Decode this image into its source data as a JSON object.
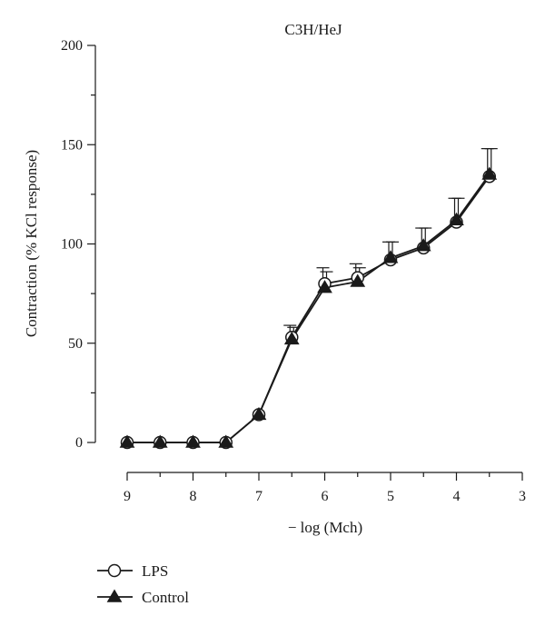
{
  "chart_data": {
    "type": "line",
    "title": "C3H/HeJ",
    "xlabel": "− log (Mch)",
    "ylabel": "Contraction (% KCl response)",
    "xlim": [
      9,
      3
    ],
    "ylim": [
      0,
      200
    ],
    "x_ticks": [
      "9",
      "8",
      "7",
      "6",
      "5",
      "4",
      "3"
    ],
    "y_ticks": [
      "0",
      "50",
      "100",
      "150",
      "200"
    ],
    "x": [
      9,
      8.5,
      8,
      7.5,
      7,
      6.5,
      6,
      5.5,
      5,
      4.5,
      4,
      3.5
    ],
    "series": [
      {
        "name": "LPS",
        "marker": "open-circle",
        "values": [
          0,
          0,
          0,
          0,
          14,
          53,
          80,
          83,
          92,
          98,
          111,
          134
        ],
        "error_upper": [
          0,
          0,
          0,
          0,
          1,
          6,
          8,
          7,
          9,
          10,
          12,
          14
        ]
      },
      {
        "name": "Control",
        "marker": "filled-triangle",
        "values": [
          0,
          0,
          0,
          0,
          14,
          52,
          78,
          81,
          93,
          99,
          112,
          135
        ],
        "error_upper": [
          0,
          0,
          0,
          0,
          1,
          6,
          8,
          7,
          8,
          9,
          11,
          13
        ]
      }
    ],
    "legend": {
      "placement": "bottom-left"
    },
    "grid": false
  }
}
